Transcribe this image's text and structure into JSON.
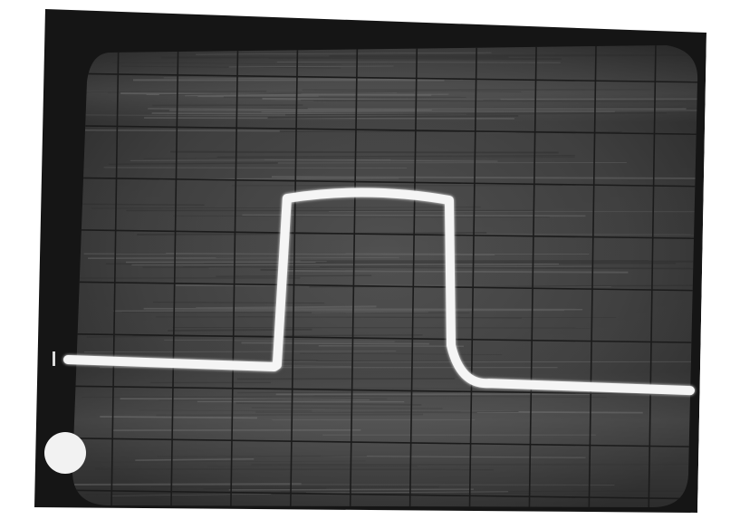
{
  "photo": {
    "subject": "oscilloscope-screen",
    "colors": {
      "page": "#ffffff",
      "bezel": "#141414",
      "screen": "#3a3a3a",
      "screen_light": "#5a5a5a",
      "grid": "#1c1c1c",
      "trace": "#f4f4f4",
      "dot": "#f2f2f2"
    },
    "graticule": {
      "major_vertical_divisions": 11,
      "major_horizontal_divisions": 8
    },
    "waveform": {
      "shape": "rectangular-pulse",
      "baseline_level_div": 0.0,
      "pulse_level_div": 3.2,
      "tail_level_div": -0.35,
      "rise_at_div": 3.7,
      "fall_at_div": 6.6
    }
  }
}
